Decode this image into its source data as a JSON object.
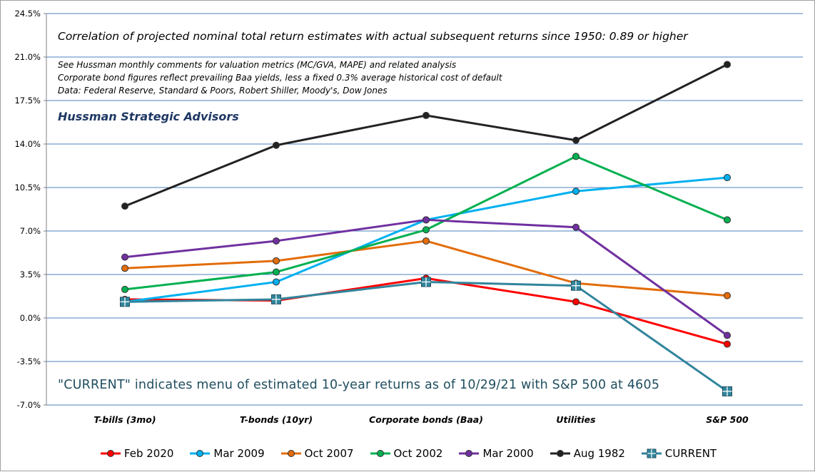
{
  "chart_data": {
    "type": "line",
    "categories": [
      "T-bills (3mo)",
      "T-bonds (10yr)",
      "Corporate bonds (Baa)",
      "Utilities",
      "S&P 500"
    ],
    "y_ticks": [
      "24.5%",
      "21.0%",
      "17.5%",
      "14.0%",
      "10.5%",
      "7.0%",
      "3.5%",
      "0.0%",
      "-3.5%",
      "-7.0%"
    ],
    "ylim": [
      -7.0,
      24.5
    ],
    "y_grid": true,
    "legend_position": "bottom",
    "series": [
      {
        "name": "Feb 2020",
        "color": "#ff0000",
        "marker": "circle",
        "values": [
          1.5,
          1.4,
          3.2,
          1.3,
          -2.1
        ]
      },
      {
        "name": "Mar 2009",
        "color": "#00b0f0",
        "marker": "circle",
        "values": [
          1.3,
          2.9,
          7.9,
          10.2,
          11.3
        ]
      },
      {
        "name": "Oct 2007",
        "color": "#e36c09",
        "marker": "circle",
        "values": [
          4.0,
          4.6,
          6.2,
          2.8,
          1.8
        ]
      },
      {
        "name": "Oct 2002",
        "color": "#00b050",
        "marker": "circle",
        "values": [
          2.3,
          3.7,
          7.1,
          13.0,
          7.9
        ]
      },
      {
        "name": "Mar 2000",
        "color": "#7030a0",
        "marker": "circle",
        "values": [
          4.9,
          6.2,
          7.9,
          7.3,
          -1.4
        ]
      },
      {
        "name": "Aug 1982",
        "color": "#222222",
        "marker": "circle",
        "values": [
          9.0,
          13.9,
          16.3,
          14.3,
          20.4
        ]
      },
      {
        "name": "CURRENT",
        "color": "#31859c",
        "marker": "square",
        "values": [
          1.3,
          1.5,
          2.9,
          2.6,
          -5.9
        ]
      }
    ]
  },
  "annotations": {
    "main": "Correlation of projected nominal total return estimates with actual subsequent returns since 1950: 0.89 or higher",
    "note1": "See Hussman monthly comments for valuation metrics (MC/GVA, MAPE) and related analysis",
    "note2": "Corporate bond figures reflect prevailing Baa yields, less a fixed 0.3% average historical cost of default",
    "note3": "Data: Federal Reserve, Standard & Poors, Robert Shiller, Moody's, Dow Jones",
    "firm": "Hussman Strategic Advisors",
    "current_note": "\"CURRENT\" indicates menu of estimated 10-year returns as of 10/29/21 with S&P 500 at 4605"
  }
}
